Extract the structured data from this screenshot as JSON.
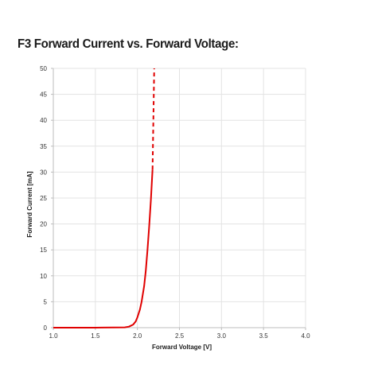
{
  "title": "F3 Forward Current vs. Forward Voltage:",
  "chart_data": {
    "type": "line",
    "xlabel": "Forward Voltage [V]",
    "ylabel": "Forward Current [mA]",
    "xlim": [
      1.0,
      4.0
    ],
    "ylim": [
      0,
      50
    ],
    "x_ticks": [
      "1.0",
      "1.5",
      "2.0",
      "2.5",
      "3.0",
      "3.5",
      "4.0"
    ],
    "y_ticks": [
      "0",
      "5",
      "10",
      "15",
      "20",
      "25",
      "30",
      "35",
      "40",
      "45",
      "50"
    ],
    "grid": true,
    "legend": "none",
    "series": [
      {
        "style": "solid",
        "color": "#e00000",
        "x": [
          1.0,
          1.5,
          1.85,
          1.9,
          1.95,
          1.98,
          2.0,
          2.03,
          2.05,
          2.08,
          2.1,
          2.12,
          2.14,
          2.16,
          2.17,
          2.18
        ],
        "y": [
          0,
          0,
          0.05,
          0.2,
          0.6,
          1.2,
          2.0,
          3.5,
          5.0,
          8.0,
          11.0,
          15.0,
          19.5,
          24.5,
          27.5,
          30.5
        ]
      },
      {
        "style": "dashed",
        "color": "#e00000",
        "x": [
          2.18,
          2.2
        ],
        "y": [
          30.5,
          50
        ]
      }
    ]
  }
}
